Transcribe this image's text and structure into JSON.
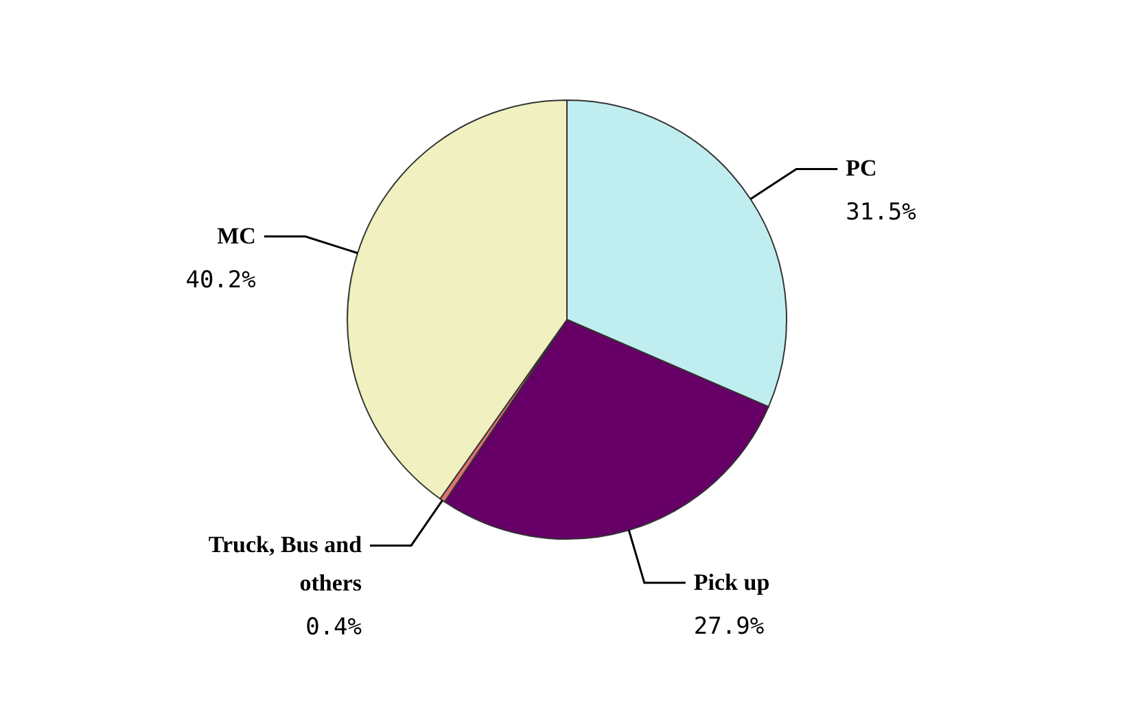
{
  "chart_data": {
    "type": "pie",
    "categories": [
      "PC",
      "Pick up",
      "Truck, Bus and others",
      "MC"
    ],
    "values": [
      31.5,
      27.9,
      0.4,
      40.2
    ],
    "value_labels": [
      "31.5%",
      "27.9%",
      "0.4%",
      "40.2%"
    ],
    "colors": [
      "#c0eef0",
      "#660066",
      "#e07070",
      "#f0f0c0"
    ]
  }
}
